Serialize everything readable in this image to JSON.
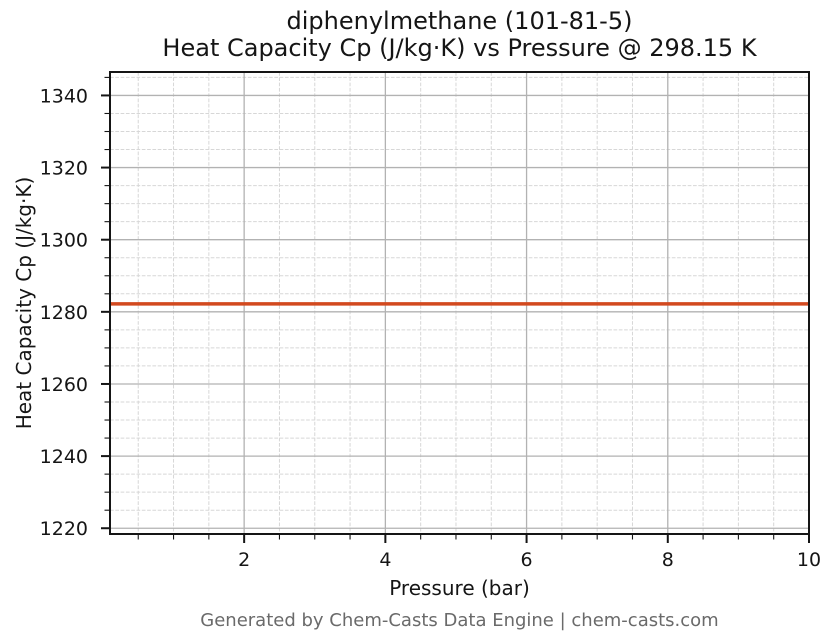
{
  "chart_data": {
    "type": "line",
    "title_line1": "diphenylmethane (101-81-5)",
    "title_line2": "Heat Capacity Cp (J/kg·K) vs Pressure @ 298.15 K",
    "compound": "diphenylmethane",
    "cas_number": "101-81-5",
    "condition": "298.15 K",
    "xlabel": "Pressure (bar)",
    "ylabel": "Heat Capacity Cp (J/kg·K)",
    "footer": "Generated by Chem-Casts Data Engine | chem-casts.com",
    "xlim": [
      0.1,
      10
    ],
    "ylim": [
      1218.4,
      1346.5
    ],
    "x_major_ticks": [
      2,
      4,
      6,
      8,
      10
    ],
    "y_major_ticks": [
      1220,
      1240,
      1260,
      1280,
      1300,
      1320,
      1340
    ],
    "x_minor_step": 0.5,
    "y_minor_step": 5,
    "grid": {
      "major_on": true,
      "minor_on": true,
      "major_color": "#b2b2b2",
      "minor_color": "#d7d7d7",
      "minor_dash": "3.7 1.6"
    },
    "legend": "none",
    "series": [
      {
        "name": "Heat Capacity Cp",
        "color": "#d2491f",
        "line_width": 3.5,
        "constant_value": 1282.2,
        "x": [
          0.1,
          10
        ],
        "y": [
          1282.2,
          1282.2
        ]
      }
    ],
    "style": {
      "spine_color": "#151515",
      "tick_color": "#151515",
      "tick_label_color": "#151515",
      "title_color": "#151515",
      "footer_color": "#6a6a6a",
      "background": "#ffffff"
    }
  }
}
